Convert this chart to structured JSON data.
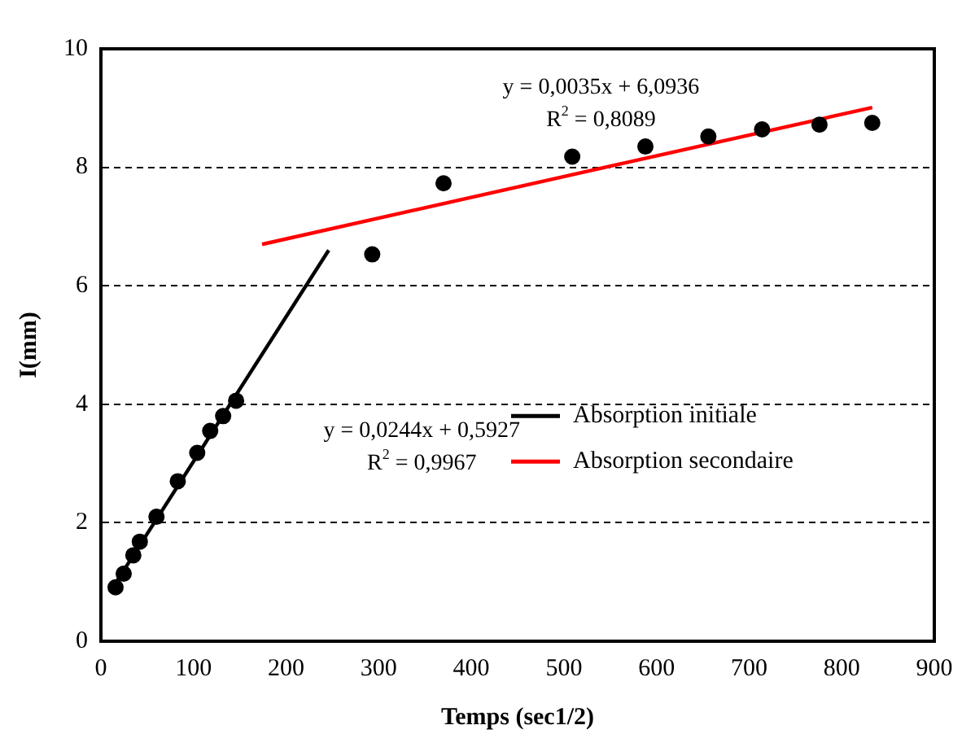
{
  "chart_data": {
    "type": "scatter",
    "xlabel": "Temps (sec1/2)",
    "ylabel": "I(mm)",
    "xlim": [
      0,
      900
    ],
    "xticks": [
      0,
      100,
      200,
      300,
      400,
      500,
      600,
      700,
      800,
      900
    ],
    "ylim": [
      0,
      10
    ],
    "yticks": [
      0,
      2,
      4,
      6,
      8,
      10
    ],
    "grid": "y",
    "legend": "right",
    "series": [
      {
        "color": "#000000",
        "marker": "circle",
        "x": [
          15.8,
          24.6,
          35,
          42,
          60,
          83,
          104,
          118,
          132,
          146,
          293,
          370,
          509,
          588,
          656,
          714,
          776,
          833
        ],
        "values": [
          0.91,
          1.14,
          1.45,
          1.68,
          2.1,
          2.7,
          3.18,
          3.55,
          3.8,
          4.06,
          6.53,
          7.73,
          8.18,
          8.35,
          8.52,
          8.64,
          8.72,
          8.75
        ]
      },
      {
        "type": "line",
        "name": "Absorption initiale",
        "color": "#000000",
        "marker": "none",
        "x": [
          15,
          246
        ],
        "values": [
          0.96,
          6.6
        ]
      },
      {
        "type": "line",
        "name": "Absorption secondaire",
        "color": "#ff0000",
        "marker": "none",
        "x": [
          174,
          833
        ],
        "values": [
          6.7,
          9.01
        ]
      }
    ],
    "annotations": [
      "y = 0,0244x + 0,5927",
      "R$^{2}$ = 0,9967",
      "y = 0,0035x + 6,0936",
      "R$^{2}$ = 0,8089"
    ]
  }
}
